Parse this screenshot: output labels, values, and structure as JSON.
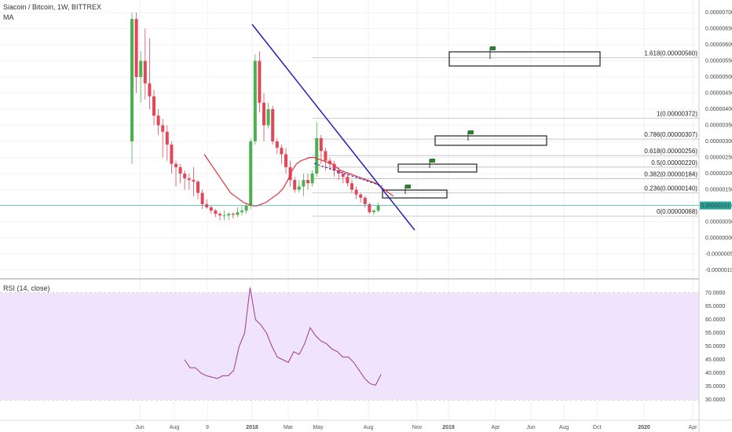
{
  "header": {
    "symbol_line": "Siacoin / Bitcoin, 1W, BITTREX",
    "indicator": "MA",
    "rsi_label": "RSI (14, close)"
  },
  "colors": {
    "up": "#4caf50",
    "down": "#e0485a",
    "ma": "#e8303c",
    "trendline": "#1f1fbf",
    "rsi": "#9b3a8e",
    "rsi_band": "#efe4fb",
    "fib": "#bbbbbb",
    "current_price_badge": "#26a69a"
  },
  "chart_data": [
    {
      "type": "candlestick",
      "title": "Siacoin / Bitcoin, 1W, BITTREX",
      "y_scale": "linear",
      "ylim": [
        -1e-06,
        7.2e-06
      ],
      "y_ticks": [
        "0.00000700",
        "0.00000650",
        "0.00000600",
        "0.00000550",
        "0.00000500",
        "0.00000450",
        "0.00000400",
        "0.00000350",
        "0.00000300",
        "0.00000250",
        "0.00000200",
        "0.00000150",
        "0.00000100",
        "0.00000050",
        "0.00000000",
        "-0.00000050",
        "-0.00000100"
      ],
      "x_ticks": [
        "Jun",
        "Aug",
        "9",
        "2018",
        "Mar",
        "May",
        "Aug",
        "Nov",
        "2019",
        "Apr",
        "Jun",
        "Aug",
        "Oct",
        "2020",
        "Apr"
      ],
      "current_price": "0.00000101",
      "candles": [
        [
          3.0,
          6.8,
          2.3,
          7.0
        ],
        [
          6.8,
          5.0,
          4.5,
          7.0
        ],
        [
          5.0,
          5.5,
          4.2,
          5.8
        ],
        [
          5.5,
          4.8,
          4.3,
          6.5
        ],
        [
          4.8,
          4.4,
          4.0,
          6.2
        ],
        [
          4.4,
          3.8,
          3.5,
          4.6
        ],
        [
          3.8,
          3.5,
          3.2,
          4.0
        ],
        [
          3.5,
          3.3,
          2.5,
          3.7
        ],
        [
          3.3,
          2.9,
          2.4,
          3.5
        ],
        [
          2.9,
          2.3,
          2.0,
          3.0
        ],
        [
          2.3,
          2.2,
          1.6,
          2.4
        ],
        [
          2.2,
          2.0,
          1.7,
          2.3
        ],
        [
          2.0,
          1.85,
          1.5,
          2.1
        ],
        [
          1.85,
          1.8,
          1.5,
          2.0
        ],
        [
          1.8,
          1.75,
          1.3,
          2.2
        ],
        [
          1.75,
          1.4,
          1.2,
          1.8
        ],
        [
          1.4,
          1.05,
          0.9,
          1.5
        ],
        [
          1.05,
          0.95,
          0.9,
          1.2
        ],
        [
          0.95,
          0.85,
          0.75,
          1.0
        ],
        [
          0.85,
          0.75,
          0.65,
          0.9
        ],
        [
          0.75,
          0.7,
          0.55,
          0.8
        ],
        [
          0.7,
          0.7,
          0.55,
          0.85
        ],
        [
          0.7,
          0.75,
          0.55,
          0.8
        ],
        [
          0.75,
          0.72,
          0.6,
          0.8
        ],
        [
          0.72,
          0.8,
          0.65,
          0.95
        ],
        [
          0.8,
          0.85,
          0.7,
          1.0
        ],
        [
          0.85,
          1.0,
          0.75,
          1.1
        ],
        [
          1.0,
          3.0,
          0.9,
          3.1
        ],
        [
          3.0,
          5.5,
          2.9,
          5.7
        ],
        [
          5.5,
          4.2,
          3.9,
          5.8
        ],
        [
          4.2,
          3.5,
          3.0,
          4.5
        ],
        [
          3.5,
          4.0,
          3.4,
          4.2
        ],
        [
          4.0,
          3.0,
          2.9,
          4.1
        ],
        [
          3.0,
          2.8,
          2.6,
          3.1
        ],
        [
          2.8,
          2.6,
          2.3,
          2.9
        ],
        [
          2.6,
          2.2,
          2.0,
          2.8
        ],
        [
          2.2,
          1.8,
          1.6,
          2.4
        ],
        [
          1.8,
          1.5,
          1.4,
          1.9
        ],
        [
          1.5,
          1.6,
          1.4,
          1.8
        ],
        [
          1.6,
          1.8,
          1.3,
          2.0
        ],
        [
          1.8,
          1.7,
          1.5,
          2.0
        ],
        [
          1.7,
          2.0,
          1.6,
          2.1
        ],
        [
          2.0,
          3.1,
          1.9,
          3.6
        ],
        [
          3.1,
          2.7,
          2.3,
          3.2
        ],
        [
          2.7,
          2.4,
          2.1,
          2.8
        ],
        [
          2.4,
          2.3,
          2.1,
          2.5
        ],
        [
          2.3,
          2.1,
          1.9,
          2.4
        ],
        [
          2.1,
          2.0,
          1.8,
          2.2
        ],
        [
          2.0,
          1.9,
          1.7,
          2.1
        ],
        [
          1.9,
          1.7,
          1.6,
          2.0
        ],
        [
          1.7,
          1.5,
          1.4,
          1.8
        ],
        [
          1.5,
          1.35,
          1.2,
          1.6
        ],
        [
          1.35,
          1.25,
          1.1,
          1.4
        ],
        [
          1.25,
          1.05,
          0.95,
          1.3
        ],
        [
          1.05,
          0.8,
          0.75,
          1.1
        ],
        [
          0.8,
          0.85,
          0.72,
          0.9
        ],
        [
          0.85,
          1.0,
          0.8,
          1.1
        ]
      ],
      "ma_line": [
        2.6,
        2.4,
        2.2,
        2.0,
        1.8,
        1.6,
        1.4,
        1.3,
        1.2,
        1.1,
        1.05,
        1.0,
        1.0,
        1.05,
        1.1,
        1.2,
        1.3,
        1.4,
        1.55,
        1.8,
        2.1,
        2.3,
        2.4,
        2.45,
        2.5,
        2.5,
        2.45,
        2.4,
        2.35,
        2.3,
        2.2,
        2.1,
        2.05,
        2.0,
        1.95,
        1.9,
        1.85,
        1.8,
        1.75,
        1.7,
        1.6,
        1.5,
        1.4,
        1.3
      ],
      "fibonacci": [
        {
          "label": "0(0.00000068)",
          "value": 0.68
        },
        {
          "label": "0.236(0.00000140)",
          "value": 1.4
        },
        {
          "label": "0.382(0.00000184)",
          "value": 1.84
        },
        {
          "label": "0.5(0.00000220)",
          "value": 2.2
        },
        {
          "label": "0.618(0.00000256)",
          "value": 2.56
        },
        {
          "label": "0.786(0.00000307)",
          "value": 3.07
        },
        {
          "label": "1(0.00000372)",
          "value": 3.72
        },
        {
          "label": "1.618(0.00000560)",
          "value": 5.6
        }
      ]
    },
    {
      "type": "line",
      "title": "RSI (14, close)",
      "ylim": [
        30,
        70
      ],
      "y_ticks": [
        "70.0000",
        "65.0000",
        "60.0000",
        "55.0000",
        "50.0000",
        "45.0000",
        "40.0000",
        "35.0000",
        "30.0000"
      ],
      "rsi": [
        45,
        42,
        42,
        40,
        39,
        38.5,
        38,
        39,
        39,
        41,
        50,
        55,
        72,
        60,
        58,
        55,
        50,
        46,
        45,
        44,
        48,
        47,
        51,
        57,
        54,
        52,
        51,
        49,
        48,
        46,
        46,
        44,
        41,
        38,
        36,
        35.5,
        39.5
      ]
    }
  ]
}
